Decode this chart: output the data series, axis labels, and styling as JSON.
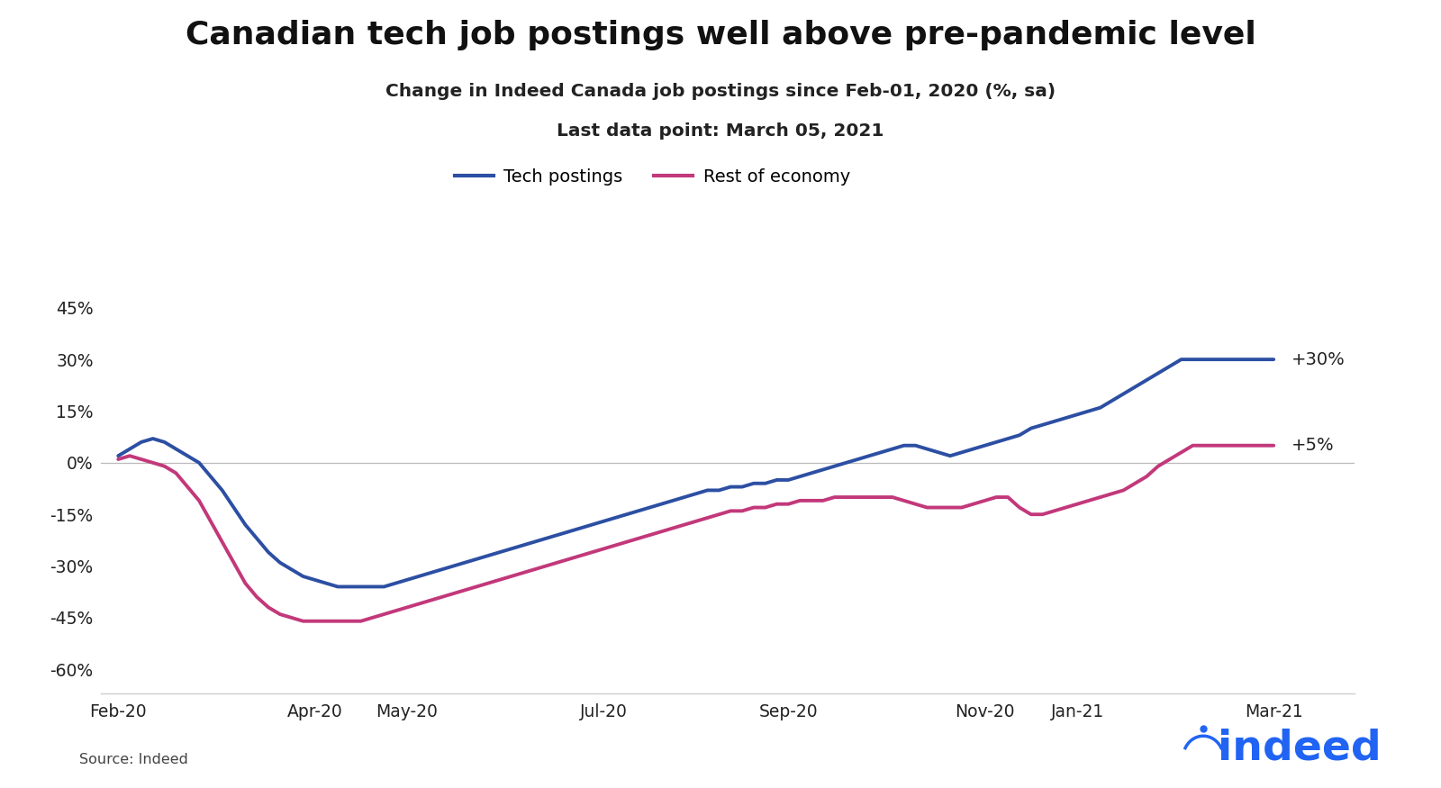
{
  "title": "Canadian tech job postings well above pre-pandemic level",
  "subtitle1": "Change in Indeed Canada job postings since Feb-01, 2020 (%, sa)",
  "subtitle2": "Last data point: March 05, 2021",
  "source": "Source: Indeed",
  "legend_labels": [
    "Tech postings",
    "Rest of economy"
  ],
  "tech_color": "#2c4fa3",
  "rest_color": "#c2387a",
  "annotation_tech": "+30%",
  "annotation_rest": "+5%",
  "yticks": [
    -60,
    -45,
    -30,
    -15,
    0,
    15,
    30,
    45
  ],
  "ytick_labels": [
    "-60%",
    "-45%",
    "-30%",
    "-15%",
    "0%",
    "15%",
    "30%",
    "45%"
  ],
  "xtick_labels": [
    "Feb-20",
    "Apr-20",
    "May-20",
    "Jul-20",
    "Sep-20",
    "Nov-20",
    "Jan-21",
    "Mar-21"
  ],
  "xtick_positions": [
    0,
    17,
    25,
    42,
    58,
    75,
    83,
    100
  ],
  "background_color": "#ffffff",
  "indeed_color": "#2164f3",
  "tech_y": [
    2,
    4,
    6,
    7,
    6,
    4,
    2,
    0,
    -4,
    -8,
    -13,
    -18,
    -22,
    -26,
    -29,
    -31,
    -33,
    -34,
    -35,
    -36,
    -36,
    -36,
    -36,
    -36,
    -35,
    -34,
    -33,
    -32,
    -31,
    -30,
    -29,
    -28,
    -27,
    -26,
    -25,
    -24,
    -23,
    -22,
    -21,
    -20,
    -19,
    -18,
    -17,
    -16,
    -15,
    -14,
    -13,
    -12,
    -11,
    -10,
    -9,
    -8,
    -8,
    -7,
    -7,
    -6,
    -6,
    -5,
    -5,
    -4,
    -3,
    -2,
    -1,
    0,
    1,
    2,
    3,
    4,
    5,
    5,
    4,
    3,
    2,
    3,
    4,
    5,
    6,
    7,
    8,
    10,
    11,
    12,
    13,
    14,
    15,
    16,
    18,
    20,
    22,
    24,
    26,
    28,
    30,
    30,
    30,
    30,
    30,
    30,
    30,
    30,
    30
  ],
  "rest_y": [
    1,
    2,
    1,
    0,
    -1,
    -3,
    -7,
    -11,
    -17,
    -23,
    -29,
    -35,
    -39,
    -42,
    -44,
    -45,
    -46,
    -46,
    -46,
    -46,
    -46,
    -46,
    -45,
    -44,
    -43,
    -42,
    -41,
    -40,
    -39,
    -38,
    -37,
    -36,
    -35,
    -34,
    -33,
    -32,
    -31,
    -30,
    -29,
    -28,
    -27,
    -26,
    -25,
    -24,
    -23,
    -22,
    -21,
    -20,
    -19,
    -18,
    -17,
    -16,
    -15,
    -14,
    -14,
    -13,
    -13,
    -12,
    -12,
    -11,
    -11,
    -11,
    -10,
    -10,
    -10,
    -10,
    -10,
    -10,
    -11,
    -12,
    -13,
    -13,
    -13,
    -13,
    -12,
    -11,
    -10,
    -10,
    -13,
    -15,
    -15,
    -14,
    -13,
    -12,
    -11,
    -10,
    -9,
    -8,
    -6,
    -4,
    -1,
    1,
    3,
    5,
    5,
    5,
    5,
    5,
    5,
    5,
    5
  ]
}
